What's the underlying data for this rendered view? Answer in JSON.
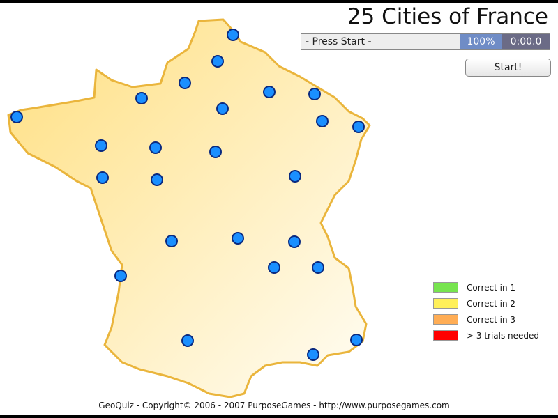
{
  "title": "25 Cities of France",
  "status": {
    "message": "- Press Start -",
    "percent": "100%",
    "timer": "0:00.0"
  },
  "start_label": "Start!",
  "legend": [
    {
      "label": "Correct in 1",
      "color": "#77e44f"
    },
    {
      "label": "Correct in 2",
      "color": "#fff05a"
    },
    {
      "label": "Correct in 3",
      "color": "#ffad55"
    },
    {
      "label": "> 3 trials needed",
      "color": "#ff0000"
    }
  ],
  "city_marker_color": "#1a8fff",
  "city_count": 25,
  "footer": "GeoQuiz - Copyright© 2006 - 2007 PurposeGames - http://www.purposegames.com"
}
